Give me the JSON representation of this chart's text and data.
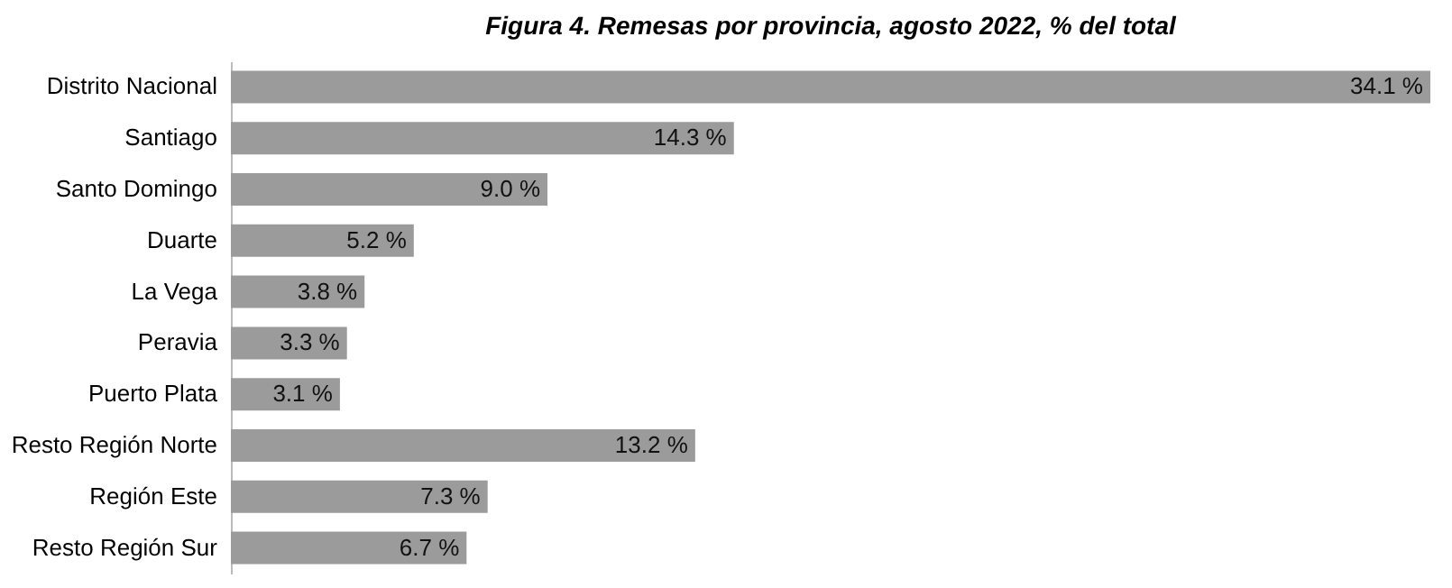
{
  "chart_data": {
    "type": "bar",
    "orientation": "horizontal",
    "title": "Figura 4. Remesas por provincia, agosto 2022, % del total",
    "categories": [
      "Distrito Nacional",
      "Santiago",
      "Santo Domingo",
      "Duarte",
      "La Vega",
      "Peravia",
      "Puerto Plata",
      "Resto Región Norte",
      "Región Este",
      "Resto Región Sur"
    ],
    "values": [
      34.1,
      14.3,
      9.0,
      5.2,
      3.8,
      3.3,
      3.1,
      13.2,
      7.3,
      6.7
    ],
    "value_labels": [
      "34.1 %",
      "14.3 %",
      "9.0 %",
      "5.2 %",
      "3.8 %",
      "3.3 %",
      "3.1 %",
      "13.2 %",
      "7.3 %",
      "6.7 %"
    ],
    "color": "#9b9b9b",
    "tick_labels": "y"
  }
}
